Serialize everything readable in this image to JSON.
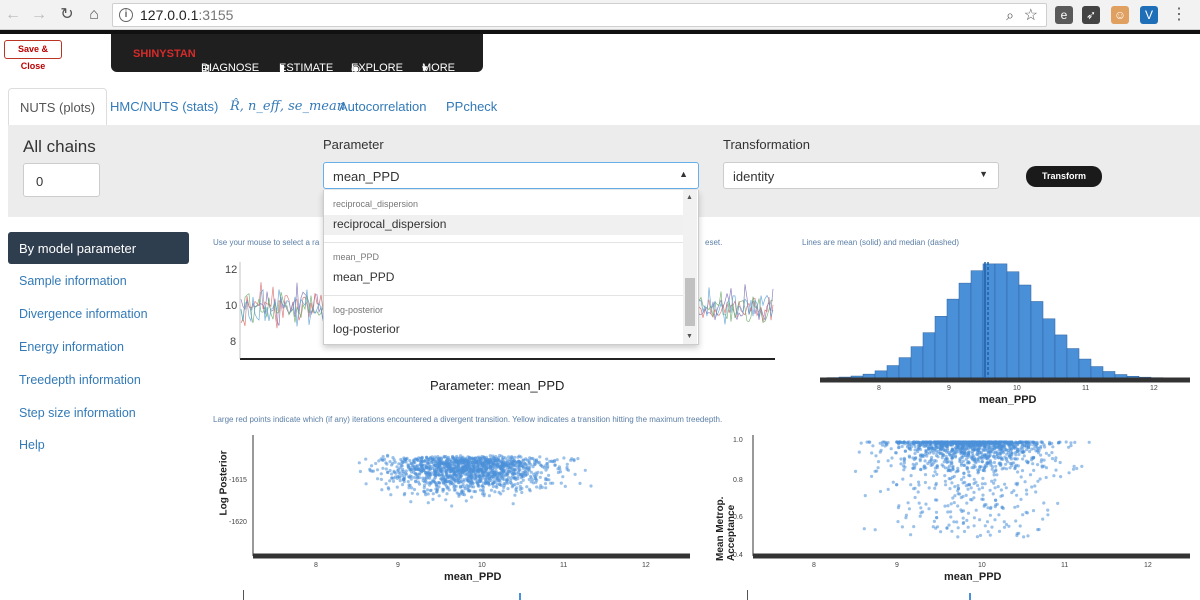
{
  "browser": {
    "url_host": "127.0.0.1",
    "url_port": ":3155"
  },
  "header": {
    "save_close": "Save & Close",
    "nav": [
      "SHINYSTAN",
      "DIAGNOSE",
      "ESTIMATE",
      "EXPLORE",
      "MORE"
    ]
  },
  "tabs": [
    "NUTS (plots)",
    "HMC/NUTS (stats)",
    "R̂, n_eff, se_mean",
    "Autocorrelation",
    "PPcheck"
  ],
  "controls": {
    "chains_label": "All chains",
    "chains_value": "0",
    "parameter_label": "Parameter",
    "parameter_value": "mean_PPD",
    "transformation_label": "Transformation",
    "transformation_value": "identity",
    "transform_button": "Transform"
  },
  "dropdown": {
    "groups": [
      {
        "group": "reciprocal_dispersion",
        "item": "reciprocal_dispersion"
      },
      {
        "group": "mean_PPD",
        "item": "mean_PPD"
      },
      {
        "group": "log-posterior",
        "item": "log-posterior"
      }
    ]
  },
  "sidebar": {
    "items": [
      "By model parameter",
      "Sample information",
      "Divergence information",
      "Energy information",
      "Treedepth information",
      "Step size information",
      "Help"
    ]
  },
  "notes": {
    "trace_left": "Use your mouse to select a ra",
    "trace_right": "eset.",
    "hist": "Lines are mean (solid) and median (dashed)",
    "scatter": "Large red points indicate which (if any) iterations encountered a divergent transition. Yellow indicates a transition hitting the maximum treedepth."
  },
  "trace": {
    "y_ticks": [
      "12",
      "10",
      "8"
    ],
    "title": "Parameter: mean_PPD"
  },
  "hist": {
    "x_ticks": [
      "8",
      "9",
      "10",
      "11",
      "12"
    ],
    "xlabel": "mean_PPD"
  },
  "scatter_left": {
    "ylabel": "Log Posterior",
    "y_ticks": [
      "-1615",
      "-1620"
    ],
    "x_ticks": [
      "8",
      "9",
      "10",
      "11",
      "12"
    ],
    "xlabel": "mean_PPD"
  },
  "scatter_right": {
    "ylabel": "Mean Metrop. Acceptance",
    "y_ticks": [
      "1.0",
      "0.8",
      "0.6",
      "0.4"
    ],
    "x_ticks": [
      "8",
      "9",
      "10",
      "11",
      "12"
    ],
    "xlabel": "mean_PPD"
  },
  "colors": {
    "accent": "#337ab7",
    "nav_red": "#d62b2b",
    "point_blue": "#4a90d9"
  }
}
